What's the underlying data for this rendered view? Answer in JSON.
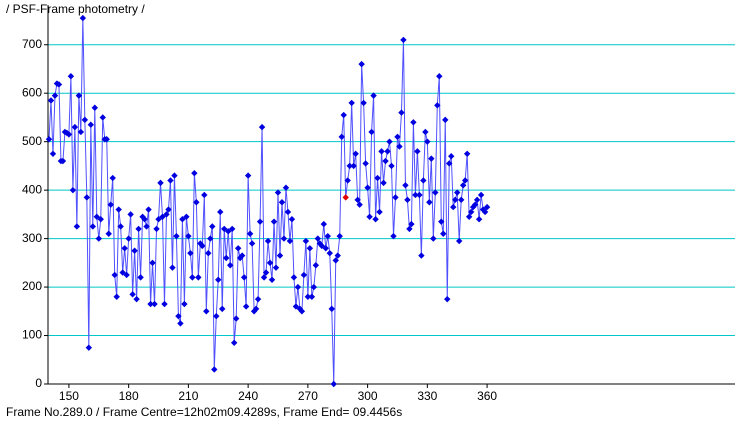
{
  "chart_data": {
    "type": "line",
    "title": "/ PSF-Frame photometry /",
    "status": "Frame No.289.0 / Frame Centre=12h02m09.4289s,  Frame End= 09.4456s",
    "x": [
      140,
      141,
      142,
      143,
      144,
      145,
      146,
      147,
      148,
      149,
      150,
      151,
      152,
      153,
      154,
      155,
      156,
      157,
      158,
      159,
      160,
      161,
      162,
      163,
      164,
      165,
      166,
      167,
      168,
      169,
      170,
      171,
      172,
      173,
      174,
      175,
      176,
      177,
      178,
      179,
      180,
      181,
      182,
      183,
      184,
      185,
      186,
      187,
      188,
      189,
      190,
      191,
      192,
      193,
      194,
      195,
      196,
      197,
      198,
      199,
      200,
      201,
      202,
      203,
      204,
      205,
      206,
      207,
      208,
      209,
      210,
      211,
      212,
      213,
      214,
      215,
      216,
      217,
      218,
      219,
      220,
      221,
      222,
      223,
      224,
      225,
      226,
      227,
      228,
      229,
      230,
      231,
      232,
      233,
      234,
      235,
      236,
      237,
      238,
      239,
      240,
      241,
      242,
      243,
      244,
      245,
      246,
      247,
      248,
      249,
      250,
      251,
      252,
      253,
      254,
      255,
      256,
      257,
      258,
      259,
      260,
      261,
      262,
      263,
      264,
      265,
      266,
      267,
      268,
      269,
      270,
      271,
      272,
      273,
      274,
      275,
      276,
      277,
      278,
      279,
      280,
      281,
      282,
      283,
      284,
      285,
      286,
      287,
      288,
      289,
      290,
      291,
      292,
      293,
      294,
      295,
      296,
      297,
      298,
      299,
      300,
      301,
      302,
      303,
      304,
      305,
      306,
      307,
      308,
      309,
      310,
      311,
      312,
      313,
      314,
      315,
      316,
      317,
      318,
      319,
      320,
      321,
      322,
      323,
      324,
      325,
      326,
      327,
      328,
      329,
      330,
      331,
      332,
      333,
      334,
      335,
      336,
      337,
      338,
      339,
      340,
      341,
      342,
      343,
      344,
      345,
      346,
      347,
      348,
      349,
      350,
      351,
      352,
      353,
      354,
      355,
      356,
      357,
      358,
      359,
      360
    ],
    "series": [
      {
        "color": "#0000e0",
        "line_color": "#5050ff",
        "values": [
          505,
          585,
          475,
          595,
          620,
          618,
          460,
          460,
          520,
          518,
          515,
          635,
          400,
          530,
          325,
          595,
          520,
          755,
          545,
          385,
          75,
          535,
          325,
          570,
          345,
          300,
          340,
          550,
          505,
          505,
          310,
          370,
          425,
          225,
          180,
          360,
          325,
          230,
          280,
          225,
          300,
          350,
          185,
          275,
          175,
          320,
          220,
          345,
          340,
          325,
          360,
          165,
          250,
          165,
          320,
          340,
          415,
          345,
          165,
          350,
          360,
          420,
          240,
          430,
          305,
          140,
          125,
          340,
          165,
          345,
          305,
          270,
          220,
          435,
          375,
          220,
          290,
          285,
          390,
          150,
          270,
          300,
          325,
          30,
          140,
          215,
          355,
          155,
          320,
          260,
          315,
          245,
          320,
          85,
          135,
          280,
          260,
          265,
          220,
          160,
          430,
          310,
          290,
          150,
          155,
          175,
          335,
          530,
          220,
          230,
          295,
          250,
          215,
          335,
          240,
          395,
          265,
          375,
          300,
          405,
          355,
          295,
          340,
          220,
          160,
          200,
          155,
          150,
          225,
          295,
          180,
          280,
          180,
          200,
          245,
          300,
          290,
          285,
          330,
          280,
          305,
          270,
          155,
          0,
          255,
          265,
          305,
          510,
          555,
          385,
          420,
          450,
          580,
          450,
          475,
          380,
          370,
          660,
          580,
          455,
          405,
          345,
          520,
          595,
          340,
          425,
          355,
          480,
          415,
          460,
          480,
          500,
          450,
          305,
          385,
          510,
          490,
          560,
          710,
          410,
          380,
          320,
          330,
          540,
          390,
          480,
          390,
          265,
          420,
          520,
          500,
          375,
          465,
          300,
          395,
          575,
          635,
          335,
          310,
          545,
          175,
          455,
          470,
          365,
          380,
          395,
          295,
          380,
          410,
          420,
          475,
          345,
          355,
          365,
          370,
          380,
          340,
          390,
          360,
          355,
          365
        ]
      }
    ],
    "selected": 289,
    "selected_color": "#e00000",
    "xlim": [
      139.5,
      484.5
    ],
    "ylim": [
      0,
      782
    ],
    "xticks": [
      150,
      180,
      210,
      240,
      270,
      300,
      330,
      360
    ],
    "yticks": [
      0,
      100,
      200,
      300,
      400,
      500,
      600,
      700
    ],
    "grid": true,
    "grid_color": "#00c8c8"
  }
}
